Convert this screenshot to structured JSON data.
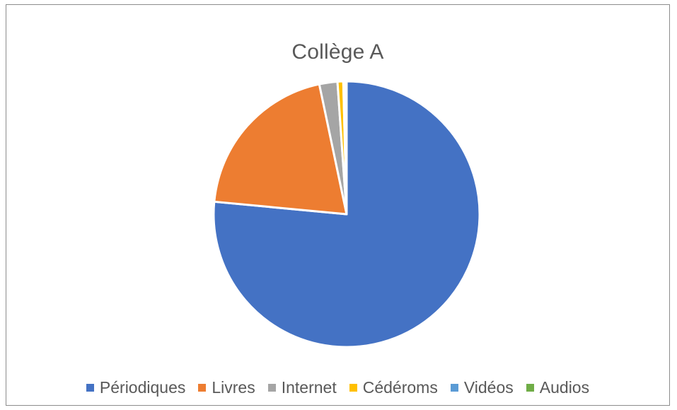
{
  "chart_data": {
    "type": "pie",
    "title": "Collège A",
    "legend_position": "bottom",
    "categories": [
      "Périodiques",
      "Livres",
      "Internet",
      "Cédéroms",
      "Vidéos",
      "Audios"
    ],
    "values": [
      76.5,
      20.2,
      2.2,
      0.7,
      0.2,
      0.2
    ],
    "colors": [
      "#4472C4",
      "#ED7D31",
      "#A5A5A5",
      "#FFC000",
      "#5B9BD5",
      "#70AD47"
    ],
    "start_angle": "12 o'clock",
    "direction": "clockwise"
  }
}
